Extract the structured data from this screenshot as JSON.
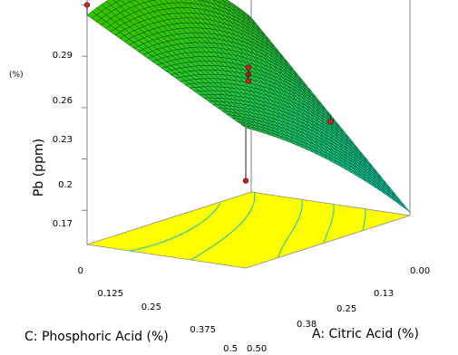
{
  "chart_data": {
    "type": "surface3d",
    "title": "",
    "corner_label": "(%)",
    "z_axis": {
      "label": "Pb (ppm)",
      "ticks": [
        "0.17",
        "0.2",
        "0.23",
        "0.26",
        "0.29"
      ],
      "range": [
        0.15,
        0.295
      ]
    },
    "a_axis": {
      "label": "A: Citric Acid (%)",
      "ticks": [
        "0.00",
        "0.13",
        "0.25",
        "0.38",
        "0.50"
      ],
      "range": [
        0,
        0.5
      ]
    },
    "c_axis": {
      "label": "C: Phosphoric Acid (%)",
      "ticks": [
        "0",
        "0.125",
        "0.25",
        "0.375",
        "0.5"
      ],
      "range": [
        0,
        0.5
      ]
    },
    "surface": {
      "corners": {
        "a0_c0": 0.252,
        "a05_c0": 0.284,
        "a0_c05": 0.152,
        "a05_c05": 0.232
      },
      "peak": {
        "a": 0.25,
        "c": 0.0,
        "z": 0.292
      }
    },
    "design_points": [
      {
        "a": 0.5,
        "c": 0.0,
        "z": 0.29
      },
      {
        "a": 0.25,
        "c": 0.25,
        "z": 0.245
      },
      {
        "a": 0.25,
        "c": 0.25,
        "z": 0.241
      },
      {
        "a": 0.25,
        "c": 0.25,
        "z": 0.237
      },
      {
        "a": 0.0,
        "c": 0.25,
        "z": 0.198
      },
      {
        "a": 0.5,
        "c": 0.5,
        "z": 0.201
      }
    ],
    "colors": {
      "floor": "#ffff00",
      "high": "#33c400",
      "low": "#00cccc",
      "point": "#cc2222",
      "contour": "#33cc99"
    }
  }
}
